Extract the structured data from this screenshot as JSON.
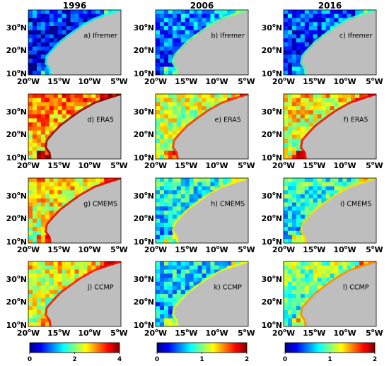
{
  "columns": [
    {
      "year": "1996",
      "colorbar": {
        "ticks": [
          "0",
          "2",
          "4"
        ],
        "min": 0,
        "max": 4
      }
    },
    {
      "year": "2006",
      "colorbar": {
        "ticks": [
          "0",
          "1",
          "2"
        ],
        "min": 0,
        "max": 2
      }
    },
    {
      "year": "2016",
      "colorbar": {
        "ticks": [
          "0",
          "1",
          "2"
        ],
        "min": 0,
        "max": 2
      }
    }
  ],
  "y_ticks": [
    {
      "deg": "30",
      "suffix": "N"
    },
    {
      "deg": "20",
      "suffix": "N"
    },
    {
      "deg": "10",
      "suffix": "N"
    }
  ],
  "x_ticks": [
    {
      "deg": "20",
      "suffix": "W"
    },
    {
      "deg": "15",
      "suffix": "W"
    },
    {
      "deg": "10",
      "suffix": "W"
    },
    {
      "deg": "5",
      "suffix": "W"
    }
  ],
  "degree_symbol": "o",
  "panels": [
    [
      "a) Ifremer",
      "b) Ifremer",
      "c) Ifremer"
    ],
    [
      "d) ERA5",
      "e) ERA5",
      "f) ERA5"
    ],
    [
      "g) CMEMS",
      "h) CMEMS",
      "i) CMEMS"
    ],
    [
      "j) CCMP",
      "k) CCMP",
      "l) CCMP"
    ]
  ],
  "colors": {
    "land": "#bebebe",
    "colormap": [
      "#00007f",
      "#0000ff",
      "#0080ff",
      "#00ffff",
      "#80ff80",
      "#ffff00",
      "#ff8000",
      "#ff0000",
      "#7f0000"
    ]
  },
  "field_levels": [
    [
      0.12,
      0.22,
      0.18
    ],
    [
      0.7,
      0.55,
      0.6
    ],
    [
      0.62,
      0.36,
      0.38
    ],
    [
      0.58,
      0.32,
      0.46
    ]
  ]
}
